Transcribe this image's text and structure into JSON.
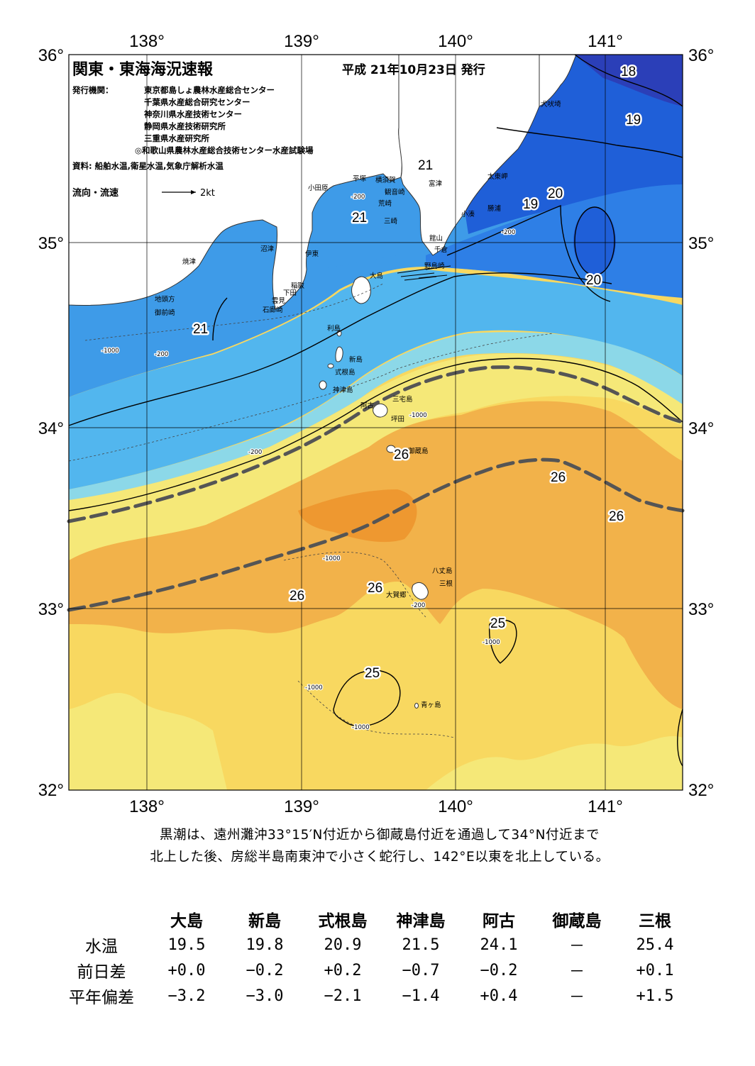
{
  "title": "関東・東海海況速報",
  "date": "平成 21年10月23日 発行",
  "publishers_label": "発行機関：",
  "publishers": [
    "東京都島しょ農林水産総合センター",
    "千葉県水産総合研究センター",
    "神奈川県水産技術センター",
    "静岡県水産技術研究所",
    "三重県水産研究所",
    "◎和歌山県農林水産総合技術センター水産試験場"
  ],
  "sources": "資料: 船舶水温,衛星水温,気象庁解析水温",
  "flow_legend": {
    "label": "流向・流速",
    "scale": "2kt"
  },
  "axes": {
    "lon_ticks": [
      "138°",
      "139°",
      "140°",
      "141°"
    ],
    "lat_ticks": [
      "36°",
      "35°",
      "34°",
      "33°",
      "32°"
    ]
  },
  "colors": {
    "t18": "#2b3fb8",
    "t19": "#1f5fd8",
    "t20": "#2e7fe6",
    "t21": "#3e9be8",
    "t22": "#52b6ee",
    "t23": "#8cd8e8",
    "t24": "#f5e878",
    "t25": "#f8d860",
    "t26": "#f2b24a",
    "t27": "#ee9830",
    "land": "#ffffff",
    "kuroshio": "#555555"
  },
  "places": [
    {
      "name": "大島"
    },
    {
      "name": "利島"
    },
    {
      "name": "新島"
    },
    {
      "name": "式根島"
    },
    {
      "name": "神津島"
    },
    {
      "name": "三宅島"
    },
    {
      "name": "阿古"
    },
    {
      "name": "坪田"
    },
    {
      "name": "御蔵島"
    },
    {
      "name": "八丈島"
    },
    {
      "name": "三根"
    },
    {
      "name": "大賀郷"
    },
    {
      "name": "青ヶ島"
    },
    {
      "name": "犬吠埼"
    },
    {
      "name": "太東岬"
    },
    {
      "name": "勝浦"
    },
    {
      "name": "小湊"
    },
    {
      "name": "館山"
    },
    {
      "name": "千倉"
    },
    {
      "name": "野島崎"
    },
    {
      "name": "富津"
    },
    {
      "name": "横須賀"
    },
    {
      "name": "観音崎"
    },
    {
      "name": "荒崎"
    },
    {
      "name": "三崎"
    },
    {
      "name": "平塚"
    },
    {
      "name": "小田原"
    },
    {
      "name": "沼津"
    },
    {
      "name": "伊東"
    },
    {
      "name": "焼津"
    },
    {
      "name": "稲取"
    },
    {
      "name": "下田"
    },
    {
      "name": "雲見"
    },
    {
      "name": "石廊崎"
    },
    {
      "name": "地頭方"
    },
    {
      "name": "御前崎"
    }
  ],
  "isotherm_labels": [
    "18",
    "19",
    "19",
    "20",
    "20",
    "21",
    "21",
    "21",
    "26",
    "26",
    "26",
    "26",
    "26",
    "25",
    "25"
  ],
  "depth_labels": [
    "-200",
    "-1000"
  ],
  "summary": [
    "黒潮は、遠州灘沖33°15′N付近から御蔵島付近を通過して34°N付近まで",
    "北上した後、房総半島南東沖で小さく蛇行し、142°E以東を北上している。"
  ],
  "table": {
    "stations": [
      "大島",
      "新島",
      "式根島",
      "神津島",
      "阿古",
      "御蔵島",
      "三根"
    ],
    "rows": [
      {
        "label": "水温",
        "values": [
          "19.5",
          "19.8",
          "20.9",
          "21.5",
          "24.1",
          "－",
          "25.4"
        ]
      },
      {
        "label": "前日差",
        "values": [
          "+0.0",
          "−0.2",
          "+0.2",
          "−0.7",
          "−0.2",
          "－",
          "+0.1"
        ]
      },
      {
        "label": "平年偏差",
        "values": [
          "−3.2",
          "−3.0",
          "−2.1",
          "−1.4",
          "+0.4",
          "－",
          "+1.5"
        ]
      }
    ]
  }
}
